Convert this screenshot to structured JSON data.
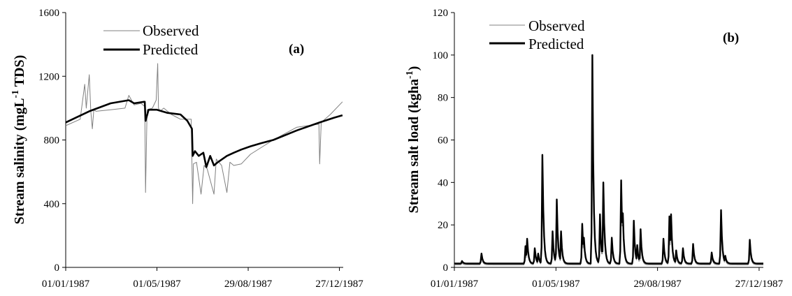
{
  "chart_data": [
    {
      "type": "line",
      "panel_label": "(a)",
      "ylabel": "Stream salinity (mgL",
      "ylabel_sup": "-1",
      "ylabel_tail": " TDS)",
      "ylim": [
        0,
        1600
      ],
      "y_ticks": [
        "0",
        "400",
        "800",
        "1200",
        "1600"
      ],
      "y_tick_values": [
        0,
        400,
        800,
        1200,
        1600
      ],
      "x_tick_labels": [
        "01/01/1987",
        "01/05/1987",
        "29/08/1987",
        "27/12/1987"
      ],
      "x_tick_dates": [
        "1987-01-01",
        "1987-05-01",
        "1987-08-29",
        "1987-12-27"
      ],
      "x_range": [
        "1987-01-01",
        "1988-01-01"
      ],
      "legend_position": "top-left",
      "series": [
        {
          "name": "Observed",
          "color": "#808080",
          "dates": [
            "1987-01-01",
            "1987-01-20",
            "1987-01-26",
            "1987-01-28",
            "1987-02-01",
            "1987-02-03",
            "1987-02-05",
            "1987-02-07",
            "1987-02-10",
            "1987-03-01",
            "1987-03-20",
            "1987-03-25",
            "1987-04-01",
            "1987-04-10",
            "1987-04-15",
            "1987-04-16",
            "1987-04-18",
            "1987-04-25",
            "1987-04-30",
            "1987-05-02",
            "1987-05-03",
            "1987-05-05",
            "1987-05-10",
            "1987-05-20",
            "1987-06-01",
            "1987-06-15",
            "1987-06-17",
            "1987-06-18",
            "1987-06-22",
            "1987-06-28",
            "1987-07-02",
            "1987-07-06",
            "1987-07-15",
            "1987-07-18",
            "1987-07-25",
            "1987-08-01",
            "1987-08-05",
            "1987-08-10",
            "1987-08-20",
            "1987-09-01",
            "1987-10-01",
            "1987-11-01",
            "1987-11-30",
            "1987-12-01",
            "1987-12-03",
            "1987-12-15",
            "1987-12-31"
          ],
          "values": [
            890,
            930,
            1150,
            1000,
            1210,
            980,
            870,
            990,
            980,
            990,
            1000,
            1080,
            1020,
            1030,
            1010,
            470,
            990,
            1000,
            1050,
            1280,
            1000,
            980,
            1000,
            960,
            930,
            930,
            400,
            650,
            660,
            460,
            640,
            620,
            460,
            680,
            640,
            470,
            660,
            640,
            650,
            710,
            800,
            880,
            900,
            650,
            910,
            960,
            1040
          ]
        },
        {
          "name": "Predicted",
          "color": "#000000",
          "dates": [
            "1987-01-01",
            "1987-02-01",
            "1987-03-01",
            "1987-03-25",
            "1987-04-01",
            "1987-04-14",
            "1987-04-15",
            "1987-04-16",
            "1987-04-20",
            "1987-05-01",
            "1987-05-15",
            "1987-06-01",
            "1987-06-10",
            "1987-06-16",
            "1987-06-17",
            "1987-06-20",
            "1987-06-25",
            "1987-07-01",
            "1987-07-05",
            "1987-07-10",
            "1987-07-15",
            "1987-07-20",
            "1987-08-01",
            "1987-08-10",
            "1987-08-20",
            "1987-09-01",
            "1987-09-15",
            "1987-10-01",
            "1987-11-01",
            "1987-12-01",
            "1987-12-20",
            "1987-12-31"
          ],
          "values": [
            910,
            980,
            1030,
            1050,
            1030,
            1040,
            1040,
            920,
            990,
            990,
            970,
            960,
            920,
            870,
            700,
            730,
            700,
            720,
            630,
            700,
            640,
            660,
            700,
            720,
            740,
            760,
            780,
            800,
            860,
            910,
            940,
            955
          ]
        }
      ]
    },
    {
      "type": "line",
      "panel_label": "(b)",
      "ylabel": "Stream salt load (kgha",
      "ylabel_sup": "-1",
      "ylabel_tail": ")",
      "ylim": [
        0,
        120
      ],
      "y_ticks": [
        "0",
        "20",
        "40",
        "60",
        "80",
        "100",
        "120"
      ],
      "y_tick_values": [
        0,
        20,
        40,
        60,
        80,
        100,
        120
      ],
      "x_tick_labels": [
        "01/01/1987",
        "01/05/1987",
        "29/08/1987",
        "27/12/1987"
      ],
      "x_tick_dates": [
        "1987-01-01",
        "1987-05-01",
        "1987-08-29",
        "1987-12-27"
      ],
      "x_range": [
        "1987-01-01",
        "1988-01-01"
      ],
      "legend_position": "top-left",
      "base_level": 1.5,
      "series": [
        {
          "name": "Observed",
          "color": "#808080",
          "base": 1.2,
          "peaks": [
            {
              "date": "1987-01-10",
              "value": 2
            },
            {
              "date": "1987-02-02",
              "value": 5
            },
            {
              "date": "1987-03-26",
              "value": 8
            },
            {
              "date": "1987-03-28",
              "value": 12
            },
            {
              "date": "1987-04-06",
              "value": 7
            },
            {
              "date": "1987-04-10",
              "value": 5
            },
            {
              "date": "1987-04-15",
              "value": 50
            },
            {
              "date": "1987-04-27",
              "value": 15
            },
            {
              "date": "1987-05-02",
              "value": 30
            },
            {
              "date": "1987-05-07",
              "value": 14
            },
            {
              "date": "1987-06-01",
              "value": 17
            },
            {
              "date": "1987-06-03",
              "value": 12
            },
            {
              "date": "1987-06-13",
              "value": 95
            },
            {
              "date": "1987-06-22",
              "value": 22
            },
            {
              "date": "1987-06-26",
              "value": 36
            },
            {
              "date": "1987-07-06",
              "value": 12
            },
            {
              "date": "1987-07-17",
              "value": 38
            },
            {
              "date": "1987-07-19",
              "value": 20
            },
            {
              "date": "1987-08-01",
              "value": 20
            },
            {
              "date": "1987-08-05",
              "value": 8
            },
            {
              "date": "1987-08-09",
              "value": 14
            },
            {
              "date": "1987-09-05",
              "value": 11
            },
            {
              "date": "1987-09-12",
              "value": 20
            },
            {
              "date": "1987-09-14",
              "value": 22
            },
            {
              "date": "1987-09-20",
              "value": 6
            },
            {
              "date": "1987-09-28",
              "value": 7
            },
            {
              "date": "1987-10-10",
              "value": 9
            },
            {
              "date": "1987-11-01",
              "value": 5
            },
            {
              "date": "1987-11-12",
              "value": 22
            },
            {
              "date": "1987-11-17",
              "value": 4
            },
            {
              "date": "1987-12-16",
              "value": 10
            }
          ]
        },
        {
          "name": "Predicted",
          "color": "#000000",
          "base": 1.8,
          "peaks": [
            {
              "date": "1987-01-10",
              "value": 3
            },
            {
              "date": "1987-02-02",
              "value": 6.5
            },
            {
              "date": "1987-03-26",
              "value": 10
            },
            {
              "date": "1987-03-28",
              "value": 13.5
            },
            {
              "date": "1987-04-06",
              "value": 9
            },
            {
              "date": "1987-04-10",
              "value": 6.5
            },
            {
              "date": "1987-04-15",
              "value": 53
            },
            {
              "date": "1987-04-27",
              "value": 17
            },
            {
              "date": "1987-05-02",
              "value": 32
            },
            {
              "date": "1987-05-07",
              "value": 17
            },
            {
              "date": "1987-06-01",
              "value": 20.5
            },
            {
              "date": "1987-06-03",
              "value": 14
            },
            {
              "date": "1987-06-13",
              "value": 100
            },
            {
              "date": "1987-06-22",
              "value": 25
            },
            {
              "date": "1987-06-26",
              "value": 40
            },
            {
              "date": "1987-07-06",
              "value": 14
            },
            {
              "date": "1987-07-17",
              "value": 41
            },
            {
              "date": "1987-07-19",
              "value": 25.5
            },
            {
              "date": "1987-08-01",
              "value": 22
            },
            {
              "date": "1987-08-05",
              "value": 10.5
            },
            {
              "date": "1987-08-09",
              "value": 18
            },
            {
              "date": "1987-09-05",
              "value": 13.5
            },
            {
              "date": "1987-09-12",
              "value": 24
            },
            {
              "date": "1987-09-14",
              "value": 25
            },
            {
              "date": "1987-09-20",
              "value": 8
            },
            {
              "date": "1987-09-28",
              "value": 9
            },
            {
              "date": "1987-10-10",
              "value": 11
            },
            {
              "date": "1987-11-01",
              "value": 7
            },
            {
              "date": "1987-11-12",
              "value": 27
            },
            {
              "date": "1987-11-17",
              "value": 5.5
            },
            {
              "date": "1987-12-16",
              "value": 13
            }
          ]
        }
      ]
    }
  ]
}
